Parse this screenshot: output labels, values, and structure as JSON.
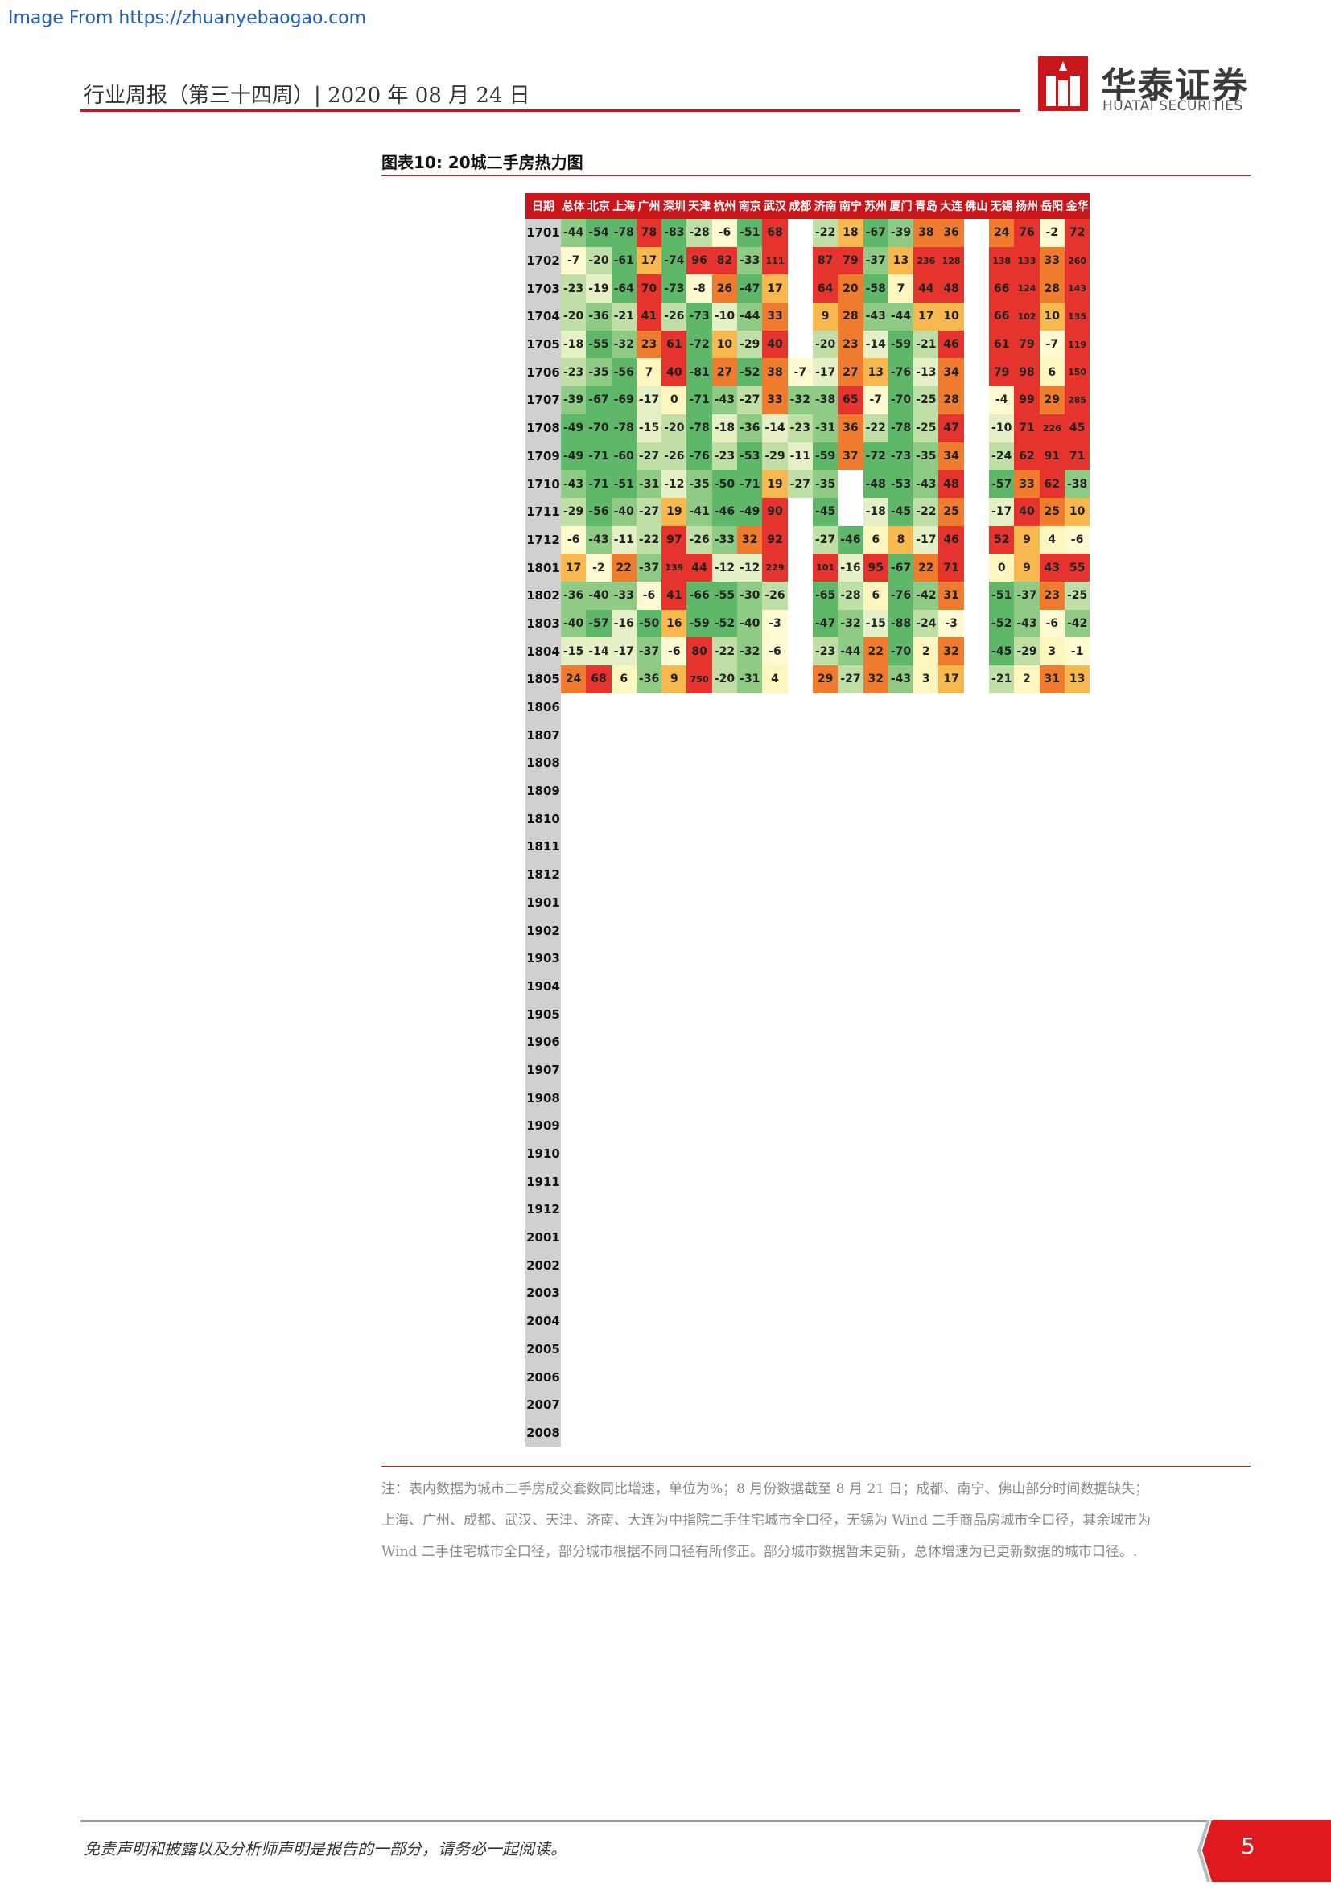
{
  "source_line": "Image From https://zhuanyebaogao.com",
  "header": "行业周报（第三十四周）| 2020 年 08 月 24 日",
  "logo": {
    "cn": "华泰证券",
    "en": "HUATAI SECURITIES"
  },
  "figure_title": "图表10:   20城二手房热力图",
  "table": {
    "columns": [
      "日期",
      "总体",
      "北京",
      "上海",
      "广州",
      "深圳",
      "天津",
      "杭州",
      "南京",
      "武汉",
      "成都",
      "济南",
      "南宁",
      "苏州",
      "厦门",
      "青岛",
      "大连",
      "佛山",
      "无锡",
      "扬州",
      "岳阳",
      "金华"
    ],
    "rows": [
      [
        "1701",
        "-44",
        "-54",
        "-78",
        "78",
        "-83",
        "-28",
        "-6",
        "-51",
        "68",
        "",
        "-22",
        "18",
        "-67",
        "-39",
        "38",
        "36",
        "",
        "24",
        "76",
        "-2",
        "72"
      ],
      [
        "1702",
        "-7",
        "-20",
        "-61",
        "17",
        "-74",
        "96",
        "82",
        "-33",
        "111",
        "",
        "87",
        "79",
        "-37",
        "13",
        "236",
        "128",
        "",
        "138",
        "133",
        "33",
        "260"
      ],
      [
        "1703",
        "-23",
        "-19",
        "-64",
        "70",
        "-73",
        "-8",
        "26",
        "-47",
        "17",
        "",
        "64",
        "20",
        "-58",
        "7",
        "44",
        "48",
        "",
        "66",
        "124",
        "28",
        "143"
      ],
      [
        "1704",
        "-20",
        "-36",
        "-21",
        "41",
        "-26",
        "-73",
        "-10",
        "-44",
        "33",
        "",
        "9",
        "28",
        "-43",
        "-44",
        "17",
        "10",
        "",
        "66",
        "102",
        "10",
        "135"
      ],
      [
        "1705",
        "-18",
        "-55",
        "-32",
        "23",
        "61",
        "-72",
        "10",
        "-29",
        "40",
        "",
        "-20",
        "23",
        "-14",
        "-59",
        "-21",
        "46",
        "",
        "61",
        "79",
        "-7",
        "119"
      ],
      [
        "1706",
        "-23",
        "-35",
        "-56",
        "7",
        "40",
        "-81",
        "27",
        "-52",
        "38",
        "-7",
        "-17",
        "27",
        "13",
        "-76",
        "-13",
        "34",
        "",
        "79",
        "98",
        "6",
        "150"
      ],
      [
        "1707",
        "-39",
        "-67",
        "-69",
        "-17",
        "0",
        "-71",
        "-43",
        "-27",
        "33",
        "-32",
        "-38",
        "65",
        "-7",
        "-70",
        "-25",
        "28",
        "",
        "-4",
        "99",
        "29",
        "285"
      ],
      [
        "1708",
        "-49",
        "-70",
        "-78",
        "-15",
        "-20",
        "-78",
        "-18",
        "-36",
        "-14",
        "-23",
        "-31",
        "36",
        "-22",
        "-78",
        "-25",
        "47",
        "",
        "-10",
        "71",
        "226",
        "45"
      ],
      [
        "1709",
        "-49",
        "-71",
        "-60",
        "-27",
        "-26",
        "-76",
        "-23",
        "-53",
        "-29",
        "-11",
        "-59",
        "37",
        "-72",
        "-73",
        "-35",
        "34",
        "",
        "-24",
        "62",
        "91",
        "71"
      ],
      [
        "1710",
        "-43",
        "-71",
        "-51",
        "-31",
        "-12",
        "-35",
        "-50",
        "-71",
        "19",
        "-27",
        "-35",
        "",
        "-48",
        "-53",
        "-43",
        "48",
        "",
        "-57",
        "33",
        "62",
        "-38"
      ],
      [
        "1711",
        "-29",
        "-56",
        "-40",
        "-27",
        "19",
        "-41",
        "-46",
        "-49",
        "90",
        "",
        "-45",
        "",
        "-18",
        "-45",
        "-22",
        "25",
        "",
        "-17",
        "40",
        "25",
        "10"
      ],
      [
        "1712",
        "-6",
        "-43",
        "-11",
        "-22",
        "97",
        "-26",
        "-33",
        "32",
        "92",
        "",
        "-27",
        "-46",
        "6",
        "8",
        "-17",
        "46",
        "",
        "52",
        "9",
        "4",
        "-6"
      ],
      [
        "1801",
        "17",
        "-2",
        "22",
        "-37",
        "139",
        "44",
        "-12",
        "-12",
        "229",
        "",
        "101",
        "-16",
        "95",
        "-67",
        "22",
        "71",
        "",
        "0",
        "9",
        "43",
        "55"
      ],
      [
        "1802",
        "-36",
        "-40",
        "-33",
        "-6",
        "41",
        "-66",
        "-55",
        "-30",
        "-26",
        "",
        "-65",
        "-28",
        "6",
        "-76",
        "-42",
        "31",
        "",
        "-51",
        "-37",
        "23",
        "-25"
      ],
      [
        "1803",
        "-40",
        "-57",
        "-16",
        "-50",
        "16",
        "-59",
        "-52",
        "-40",
        "-3",
        "",
        "-47",
        "-32",
        "-15",
        "-88",
        "-24",
        "-3",
        "",
        "-52",
        "-43",
        "-6",
        "-42"
      ],
      [
        "1804",
        "-15",
        "-14",
        "-17",
        "-37",
        "-6",
        "80",
        "-22",
        "-32",
        "-6",
        "",
        "-23",
        "-44",
        "22",
        "-70",
        "2",
        "32",
        "",
        "-45",
        "-29",
        "3",
        "-1"
      ],
      [
        "1805",
        "24",
        "68",
        "6",
        "-36",
        "9",
        "750",
        "-20",
        "-31",
        "4",
        "",
        "29",
        "-27",
        "32",
        "-43",
        "3",
        "17",
        "",
        "-21",
        "2",
        "31",
        "13"
      ],
      [
        "1806",
        "",
        "",
        "",
        "",
        "",
        "",
        "",
        "",
        "",
        "",
        "",
        "",
        "",
        "",
        "",
        "",
        "",
        "",
        "",
        "",
        ""
      ],
      [
        "1807",
        "",
        "",
        "",
        "",
        "",
        "",
        "",
        "",
        "",
        "",
        "",
        "",
        "",
        "",
        "",
        "",
        "",
        "",
        "",
        "",
        ""
      ],
      [
        "1808",
        "",
        "",
        "",
        "",
        "",
        "",
        "",
        "",
        "",
        "",
        "",
        "",
        "",
        "",
        "",
        "",
        "",
        "",
        "",
        "",
        ""
      ],
      [
        "1809",
        "",
        "",
        "",
        "",
        "",
        "",
        "",
        "",
        "",
        "",
        "",
        "",
        "",
        "",
        "",
        "",
        "",
        "",
        "",
        "",
        ""
      ],
      [
        "1810",
        "",
        "",
        "",
        "",
        "",
        "",
        "",
        "",
        "",
        "",
        "",
        "",
        "",
        "",
        "",
        "",
        "",
        "",
        "",
        "",
        ""
      ],
      [
        "1811",
        "",
        "",
        "",
        "",
        "",
        "",
        "",
        "",
        "",
        "",
        "",
        "",
        "",
        "",
        "",
        "",
        "",
        "",
        "",
        "",
        ""
      ],
      [
        "1812",
        "",
        "",
        "",
        "",
        "",
        "",
        "",
        "",
        "",
        "",
        "",
        "",
        "",
        "",
        "",
        "",
        "",
        "",
        "",
        "",
        ""
      ],
      [
        "1901",
        "",
        "",
        "",
        "",
        "",
        "",
        "",
        "",
        "",
        "",
        "",
        "",
        "",
        "",
        "",
        "",
        "",
        "",
        "",
        "",
        ""
      ],
      [
        "1902",
        "",
        "",
        "",
        "",
        "",
        "",
        "",
        "",
        "",
        "",
        "",
        "",
        "",
        "",
        "",
        "",
        "",
        "",
        "",
        "",
        ""
      ],
      [
        "1903",
        "",
        "",
        "",
        "",
        "",
        "",
        "",
        "",
        "",
        "",
        "",
        "",
        "",
        "",
        "",
        "",
        "",
        "",
        "",
        "",
        ""
      ],
      [
        "1904",
        "",
        "",
        "",
        "",
        "",
        "",
        "",
        "",
        "",
        "",
        "",
        "",
        "",
        "",
        "",
        "",
        "",
        "",
        "",
        "",
        ""
      ],
      [
        "1905",
        "",
        "",
        "",
        "",
        "",
        "",
        "",
        "",
        "",
        "",
        "",
        "",
        "",
        "",
        "",
        "",
        "",
        "",
        "",
        "",
        ""
      ],
      [
        "1906",
        "",
        "",
        "",
        "",
        "",
        "",
        "",
        "",
        "",
        "",
        "",
        "",
        "",
        "",
        "",
        "",
        "",
        "",
        "",
        "",
        ""
      ],
      [
        "1907",
        "",
        "",
        "",
        "",
        "",
        "",
        "",
        "",
        "",
        "",
        "",
        "",
        "",
        "",
        "",
        "",
        "",
        "",
        "",
        "",
        ""
      ],
      [
        "1908",
        "",
        "",
        "",
        "",
        "",
        "",
        "",
        "",
        "",
        "",
        "",
        "",
        "",
        "",
        "",
        "",
        "",
        "",
        "",
        "",
        ""
      ],
      [
        "1909",
        "",
        "",
        "",
        "",
        "",
        "",
        "",
        "",
        "",
        "",
        "",
        "",
        "",
        "",
        "",
        "",
        "",
        "",
        "",
        "",
        ""
      ],
      [
        "1910",
        "",
        "",
        "",
        "",
        "",
        "",
        "",
        "",
        "",
        "",
        "",
        "",
        "",
        "",
        "",
        "",
        "",
        "",
        "",
        "",
        ""
      ],
      [
        "1911",
        "",
        "",
        "",
        "",
        "",
        "",
        "",
        "",
        "",
        "",
        "",
        "",
        "",
        "",
        "",
        "",
        "",
        "",
        "",
        "",
        ""
      ],
      [
        "1912",
        "",
        "",
        "",
        "",
        "",
        "",
        "",
        "",
        "",
        "",
        "",
        "",
        "",
        "",
        "",
        "",
        "",
        "",
        "",
        "",
        ""
      ],
      [
        "2001",
        "",
        "",
        "",
        "",
        "",
        "",
        "",
        "",
        "",
        "",
        "",
        "",
        "",
        "",
        "",
        "",
        "",
        "",
        "",
        "",
        ""
      ],
      [
        "2002",
        "",
        "",
        "",
        "",
        "",
        "",
        "",
        "",
        "",
        "",
        "",
        "",
        "",
        "",
        "",
        "",
        "",
        "",
        "",
        "",
        ""
      ],
      [
        "2003",
        "",
        "",
        "",
        "",
        "",
        "",
        "",
        "",
        "",
        "",
        "",
        "",
        "",
        "",
        "",
        "",
        "",
        "",
        "",
        "",
        ""
      ],
      [
        "2004",
        "",
        "",
        "",
        "",
        "",
        "",
        "",
        "",
        "",
        "",
        "",
        "",
        "",
        "",
        "",
        "",
        "",
        "",
        "",
        "",
        ""
      ],
      [
        "2005",
        "",
        "",
        "",
        "",
        "",
        "",
        "",
        "",
        "",
        "",
        "",
        "",
        "",
        "",
        "",
        "",
        "",
        "",
        "",
        "",
        ""
      ],
      [
        "2006",
        "",
        "",
        "",
        "",
        "",
        "",
        "",
        "",
        "",
        "",
        "",
        "",
        "",
        "",
        "",
        "",
        "",
        "",
        "",
        "",
        ""
      ],
      [
        "2007",
        "",
        "",
        "",
        "",
        "",
        "",
        "",
        "",
        "",
        "",
        "",
        "",
        "",
        "",
        "",
        "",
        "",
        "",
        "",
        "",
        ""
      ],
      [
        "2008",
        "",
        "",
        "",
        "",
        "",
        "",
        "",
        "",
        "",
        "",
        "",
        "",
        "",
        "",
        "",
        "",
        "",
        "",
        "",
        "",
        ""
      ]
    ]
  },
  "note_lines": [
    "注：表内数据为城市二手房成交套数同比增速，单位为%；8 月份数据截至 8 月 21 日；成都、南宁、佛山部分时间数据缺失；",
    "上海、广州、成都、武汉、天津、济南、大连为中指院二手住宅城市全口径，无锡为 Wind 二手商品房城市全口径，其余城市为",
    "Wind 二手住宅城市全口径，部分城市根据不同口径有所修正。部分城市数据暂未更新，总体增速为已更新数据的城市口径。."
  ],
  "footer": "免责声明和披露以及分析师声明是报告的一部分，请务必一起阅读。",
  "page_number": "5",
  "colors": {
    "brand_red": "#c8161d",
    "heat_low": "#5fb86a",
    "heat_mid": "#fdfad2",
    "heat_high": "#e4342d"
  }
}
